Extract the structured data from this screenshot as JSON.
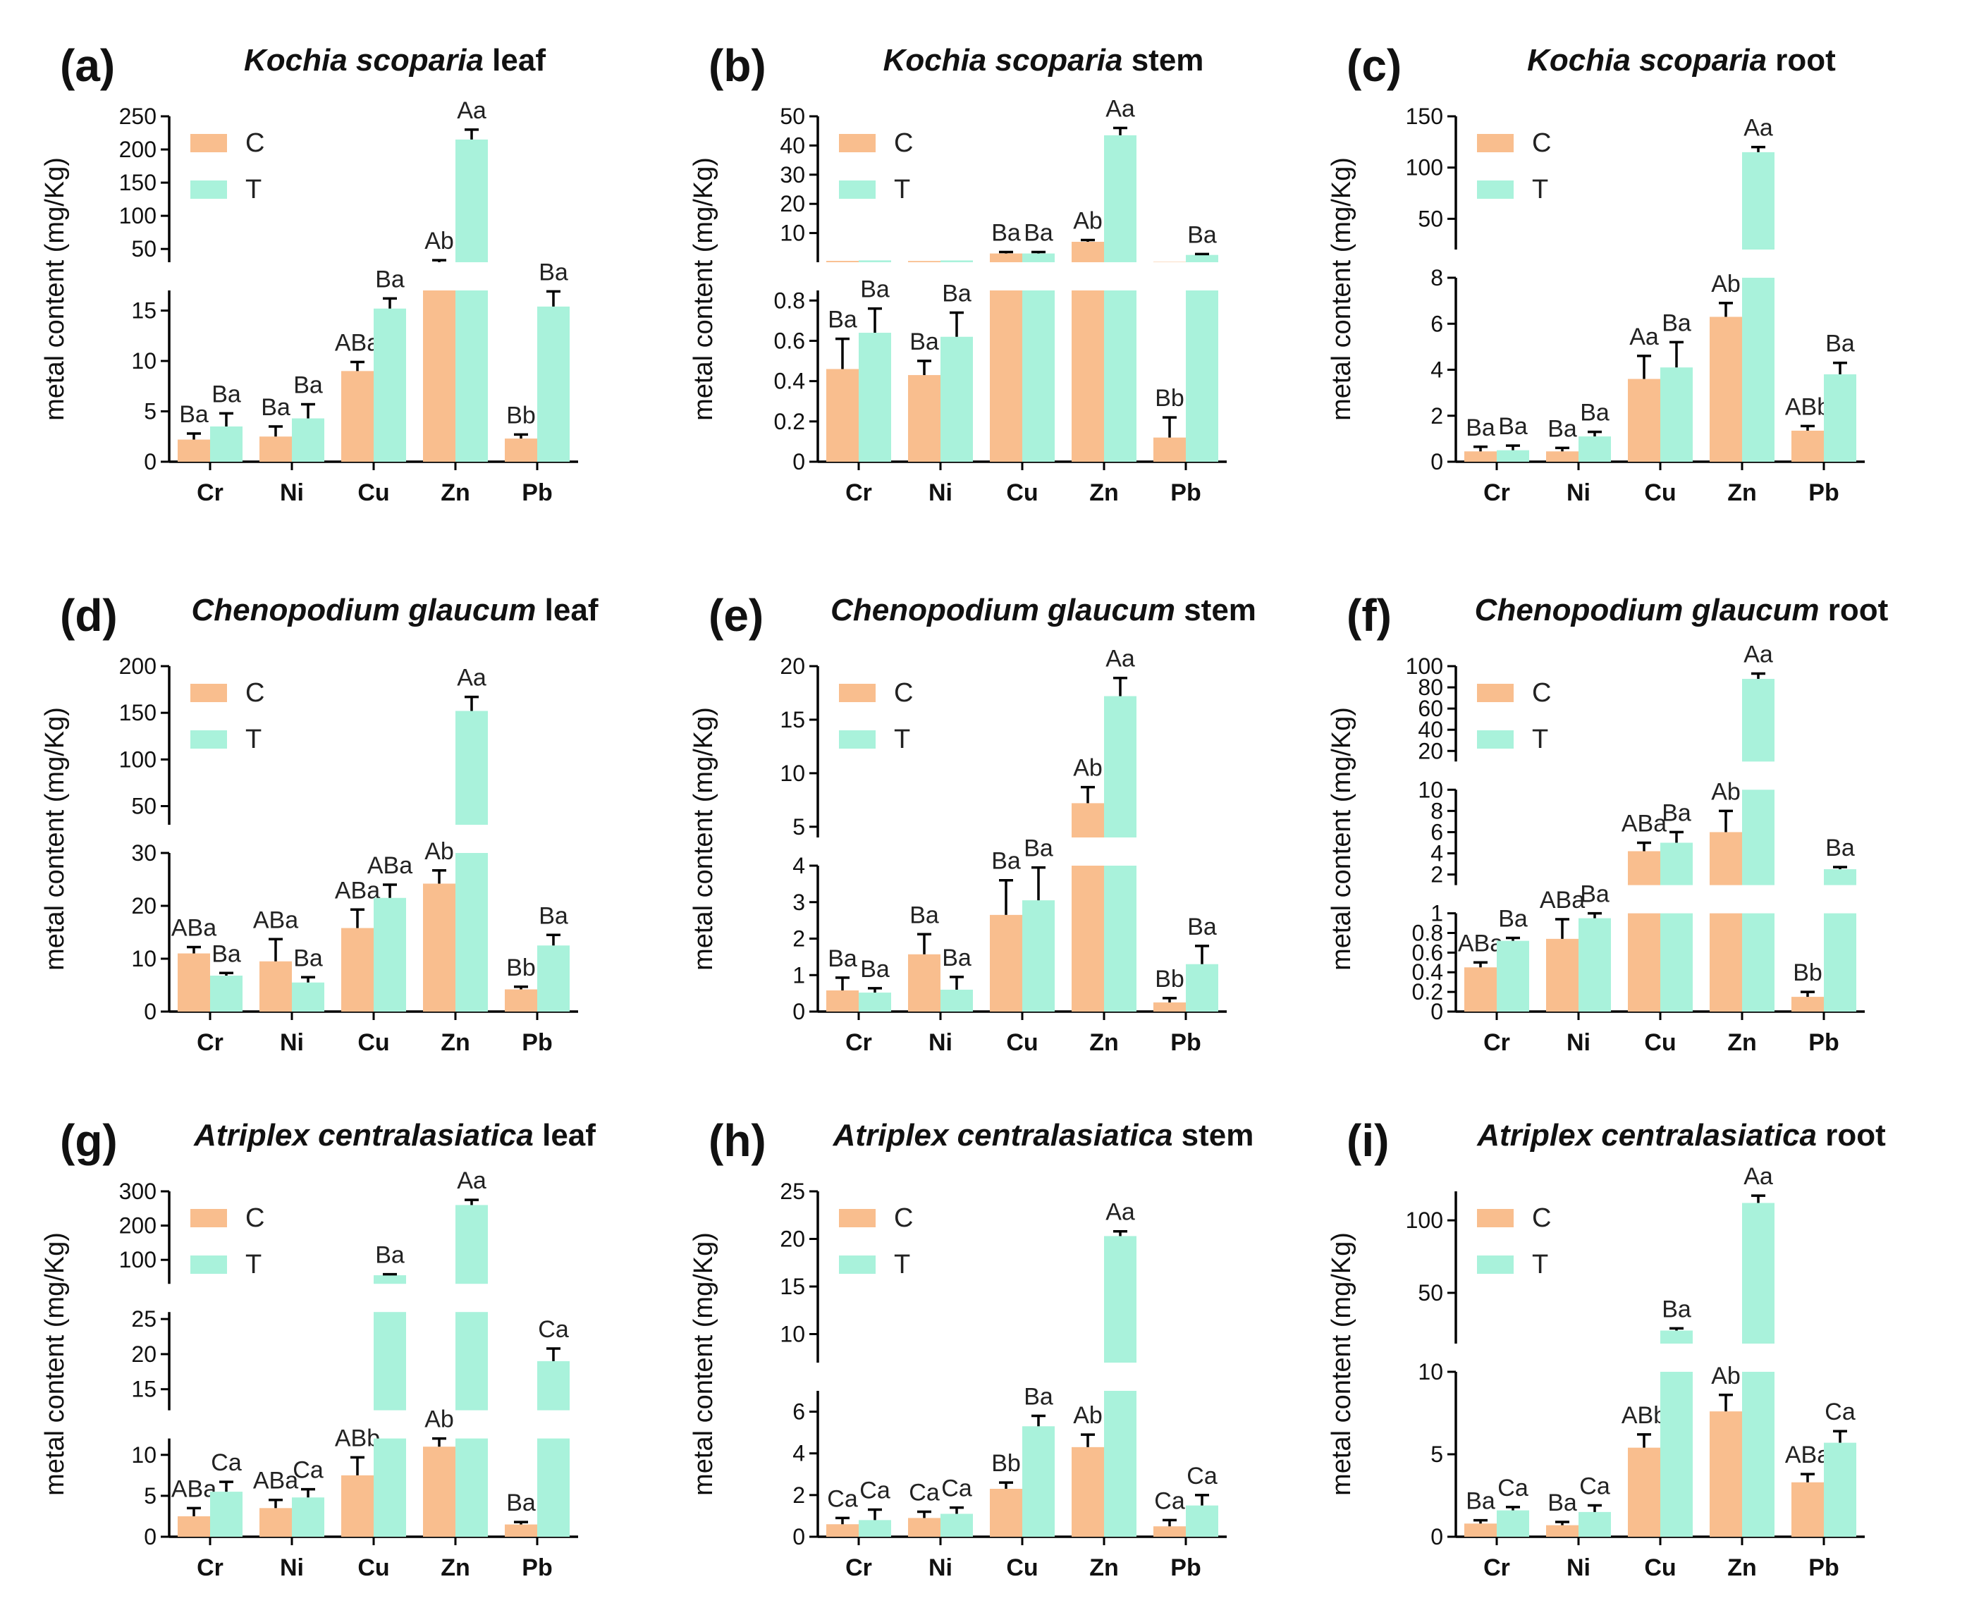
{
  "colors": {
    "C": "#F9BE8E",
    "T": "#A9F2DB"
  },
  "chart_data": [
    {
      "panel": "(a)",
      "type": "bar",
      "title_italic": "Kochia scoparia",
      "title_rest": " leaf",
      "ylabel": "metal content (mg/Kg)",
      "categories": [
        "Cr",
        "Ni",
        "Cu",
        "Zn",
        "Pb"
      ],
      "series": [
        {
          "name": "C",
          "values": [
            2.2,
            2.5,
            9.0,
            25,
            2.3
          ],
          "errors": [
            0.6,
            1.0,
            0.9,
            8,
            0.4
          ],
          "labels": [
            "Ba",
            "Ba",
            "ABa",
            "Ab",
            "Bb"
          ]
        },
        {
          "name": "T",
          "values": [
            3.5,
            4.3,
            15.2,
            215,
            15.4
          ],
          "errors": [
            1.3,
            1.4,
            1.0,
            15,
            1.5
          ],
          "labels": [
            "Ba",
            "Ba",
            "Ba",
            "Aa",
            "Ba"
          ]
        }
      ],
      "segments": [
        {
          "range": [
            0,
            17
          ],
          "ticks": [
            0,
            5,
            10,
            15
          ],
          "frac": 0.54
        },
        {
          "range": [
            30,
            250
          ],
          "ticks": [
            50,
            100,
            150,
            200,
            250
          ],
          "frac": 0.46
        }
      ],
      "legend": "top-left"
    },
    {
      "panel": "(b)",
      "type": "bar",
      "title_italic": "Kochia scoparia",
      "title_rest": " stem",
      "ylabel": "metal content (mg/Kg)",
      "categories": [
        "Cr",
        "Ni",
        "Cu",
        "Zn",
        "Pb"
      ],
      "series": [
        {
          "name": "C",
          "values": [
            0.46,
            0.43,
            3.0,
            7.0,
            0.12
          ],
          "errors": [
            0.15,
            0.07,
            0.5,
            0.6,
            0.1
          ],
          "labels": [
            "Ba",
            "Ba",
            "Ba",
            "Ab",
            "Bb"
          ]
        },
        {
          "name": "T",
          "values": [
            0.64,
            0.62,
            3.0,
            43.5,
            2.5
          ],
          "errors": [
            0.12,
            0.12,
            0.5,
            2.5,
            0.3
          ],
          "labels": [
            "Ba",
            "Ba",
            "Ba",
            "Aa",
            "Ba"
          ]
        }
      ],
      "segments": [
        {
          "range": [
            0,
            0.85
          ],
          "ticks": [
            0.0,
            0.2,
            0.4,
            0.6,
            0.8
          ],
          "frac": 0.54
        },
        {
          "range": [
            0,
            50
          ],
          "ticks": [
            10,
            20,
            30,
            40,
            50
          ],
          "frac": 0.46
        }
      ],
      "legend": "top-left"
    },
    {
      "panel": "(c)",
      "type": "bar",
      "title_italic": "Kochia scoparia",
      "title_rest": " root",
      "ylabel": "metal content (mg/Kg)",
      "categories": [
        "Cr",
        "Ni",
        "Cu",
        "Zn",
        "Pb"
      ],
      "series": [
        {
          "name": "C",
          "values": [
            0.45,
            0.45,
            3.6,
            6.3,
            1.35
          ],
          "errors": [
            0.2,
            0.15,
            1.0,
            0.6,
            0.2
          ],
          "labels": [
            "Ba",
            "Ba",
            "Aa",
            "Ab",
            "ABb"
          ]
        },
        {
          "name": "T",
          "values": [
            0.5,
            1.1,
            4.1,
            115,
            3.8
          ],
          "errors": [
            0.2,
            0.2,
            1.1,
            5,
            0.5
          ],
          "labels": [
            "Ba",
            "Ba",
            "Ba",
            "Aa",
            "Ba"
          ]
        }
      ],
      "segments": [
        {
          "range": [
            0,
            8
          ],
          "ticks": [
            0,
            2,
            4,
            6,
            8
          ],
          "frac": 0.58
        },
        {
          "range": [
            20,
            150
          ],
          "ticks": [
            50,
            100,
            150
          ],
          "frac": 0.42
        }
      ],
      "legend": "top-left"
    },
    {
      "panel": "(d)",
      "type": "bar",
      "title_italic": "Chenopodium glaucum",
      "title_rest": " leaf",
      "ylabel": "metal content (mg/Kg)",
      "categories": [
        "Cr",
        "Ni",
        "Cu",
        "Zn",
        "Pb"
      ],
      "series": [
        {
          "name": "C",
          "values": [
            11,
            9.5,
            15.8,
            24.2,
            4.2
          ],
          "errors": [
            1.2,
            4.2,
            3.5,
            2.5,
            0.5
          ],
          "labels": [
            "ABa",
            "ABa",
            "ABa",
            "Ab",
            "Bb"
          ]
        },
        {
          "name": "T",
          "values": [
            6.8,
            5.5,
            21.5,
            152,
            12.5
          ],
          "errors": [
            0.5,
            1.0,
            2.5,
            15,
            2.0
          ],
          "labels": [
            "Ba",
            "Ba",
            "ABa",
            "Aa",
            "Ba"
          ]
        }
      ],
      "segments": [
        {
          "range": [
            0,
            30
          ],
          "ticks": [
            0,
            10,
            20,
            30
          ],
          "frac": 0.5
        },
        {
          "range": [
            30,
            200
          ],
          "ticks": [
            50,
            100,
            150,
            200
          ],
          "frac": 0.5
        }
      ],
      "legend": "top-left"
    },
    {
      "panel": "(e)",
      "type": "bar",
      "title_italic": "Chenopodium glaucum",
      "title_rest": " stem",
      "ylabel": "metal content (mg/Kg)",
      "categories": [
        "Cr",
        "Ni",
        "Cu",
        "Zn",
        "Pb"
      ],
      "series": [
        {
          "name": "C",
          "values": [
            0.58,
            1.57,
            2.65,
            7.2,
            0.25
          ],
          "errors": [
            0.35,
            0.55,
            0.95,
            1.5,
            0.12
          ],
          "labels": [
            "Ba",
            "Ba",
            "Ba",
            "Ab",
            "Bb"
          ]
        },
        {
          "name": "T",
          "values": [
            0.52,
            0.6,
            3.05,
            17.2,
            1.3
          ],
          "errors": [
            0.12,
            0.35,
            0.9,
            1.7,
            0.5
          ],
          "labels": [
            "Ba",
            "Ba",
            "Ba",
            "Aa",
            "Ba"
          ]
        }
      ],
      "segments": [
        {
          "range": [
            0,
            4
          ],
          "ticks": [
            0,
            1,
            2,
            3,
            4
          ],
          "frac": 0.46
        },
        {
          "range": [
            4,
            20
          ],
          "ticks": [
            5,
            10,
            15,
            20
          ],
          "frac": 0.54
        }
      ],
      "legend": "top-left"
    },
    {
      "panel": "(f)",
      "type": "bar",
      "title_italic": "Chenopodium glaucum",
      "title_rest": " root",
      "ylabel": "metal content (mg/Kg)",
      "categories": [
        "Cr",
        "Ni",
        "Cu",
        "Zn",
        "Pb"
      ],
      "series": [
        {
          "name": "C",
          "values": [
            0.45,
            0.74,
            4.2,
            6.0,
            0.15
          ],
          "errors": [
            0.05,
            0.2,
            0.8,
            2.0,
            0.05
          ],
          "labels": [
            "ABa",
            "ABa",
            "ABa",
            "Ab",
            "Bb"
          ]
        },
        {
          "name": "T",
          "values": [
            0.72,
            0.95,
            5.0,
            88,
            2.5
          ],
          "errors": [
            0.03,
            0.05,
            1.0,
            5,
            0.2
          ],
          "labels": [
            "Ba",
            "Ba",
            "Ba",
            "Aa",
            "Ba"
          ]
        }
      ],
      "segments": [
        {
          "range": [
            0,
            1.0
          ],
          "ticks": [
            0.0,
            0.2,
            0.4,
            0.6,
            0.8,
            1.0
          ],
          "frac": 0.34
        },
        {
          "range": [
            1,
            10
          ],
          "ticks": [
            2,
            4,
            6,
            8,
            10
          ],
          "frac": 0.33
        },
        {
          "range": [
            10,
            100
          ],
          "ticks": [
            20,
            40,
            60,
            80,
            100
          ],
          "frac": 0.33
        }
      ],
      "legend": "top-left"
    },
    {
      "panel": "(g)",
      "type": "bar",
      "title_italic": "Atriplex centralasiatica",
      "title_rest": " leaf",
      "ylabel": "metal content (mg/Kg)",
      "categories": [
        "Cr",
        "Ni",
        "Cu",
        "Zn",
        "Pb"
      ],
      "series": [
        {
          "name": "C",
          "values": [
            2.5,
            3.5,
            7.5,
            11,
            1.5
          ],
          "errors": [
            1.0,
            1.0,
            2.2,
            1.0,
            0.3
          ],
          "labels": [
            "ABa",
            "ABa",
            "ABb",
            "Ab",
            "Ba"
          ]
        },
        {
          "name": "T",
          "values": [
            5.5,
            4.8,
            55,
            260,
            19
          ],
          "errors": [
            1.2,
            1.0,
            3,
            15,
            1.8
          ],
          "labels": [
            "Ca",
            "Ca",
            "Ba",
            "Aa",
            "Ca"
          ]
        }
      ],
      "segments": [
        {
          "range": [
            0,
            12
          ],
          "ticks": [
            0,
            5,
            10
          ],
          "frac": 0.34
        },
        {
          "range": [
            12,
            26
          ],
          "ticks": [
            15,
            20,
            25
          ],
          "frac": 0.34
        },
        {
          "range": [
            30,
            300
          ],
          "ticks": [
            100,
            200,
            300
          ],
          "frac": 0.32
        }
      ],
      "legend": "top-left"
    },
    {
      "panel": "(h)",
      "type": "bar",
      "title_italic": "Atriplex centralasiatica",
      "title_rest": " stem",
      "ylabel": "metal content (mg/Kg)",
      "categories": [
        "Cr",
        "Ni",
        "Cu",
        "Zn",
        "Pb"
      ],
      "series": [
        {
          "name": "C",
          "values": [
            0.6,
            0.9,
            2.3,
            4.3,
            0.5
          ],
          "errors": [
            0.3,
            0.3,
            0.3,
            0.6,
            0.3
          ],
          "labels": [
            "Ca",
            "Ca",
            "Bb",
            "Ab",
            "Ca"
          ]
        },
        {
          "name": "T",
          "values": [
            0.8,
            1.1,
            5.3,
            20.3,
            1.5
          ],
          "errors": [
            0.5,
            0.3,
            0.5,
            0.5,
            0.5
          ],
          "labels": [
            "Ca",
            "Ca",
            "Ba",
            "Aa",
            "Ca"
          ]
        }
      ],
      "segments": [
        {
          "range": [
            0,
            7
          ],
          "ticks": [
            0,
            2,
            4,
            6
          ],
          "frac": 0.46
        },
        {
          "range": [
            7,
            25
          ],
          "ticks": [
            10,
            15,
            20,
            25
          ],
          "frac": 0.54
        }
      ],
      "legend": "top-left"
    },
    {
      "panel": "(i)",
      "type": "bar",
      "title_italic": "Atriplex centralasiatica",
      "title_rest": " root",
      "ylabel": "metal content (mg/Kg)",
      "categories": [
        "Cr",
        "Ni",
        "Cu",
        "Zn",
        "Pb"
      ],
      "series": [
        {
          "name": "C",
          "values": [
            0.8,
            0.7,
            5.4,
            7.6,
            3.3
          ],
          "errors": [
            0.2,
            0.2,
            0.8,
            1.0,
            0.5
          ],
          "labels": [
            "Ba",
            "Ba",
            "ABb",
            "Ab",
            "ABa"
          ]
        },
        {
          "name": "T",
          "values": [
            1.6,
            1.5,
            24,
            112,
            5.7
          ],
          "errors": [
            0.2,
            0.4,
            1.5,
            5,
            0.7
          ],
          "labels": [
            "Ca",
            "Ca",
            "Ba",
            "Aa",
            "Ca"
          ]
        }
      ],
      "segments": [
        {
          "range": [
            0,
            10
          ],
          "ticks": [
            0,
            5,
            10
          ],
          "frac": 0.52
        },
        {
          "range": [
            15,
            120
          ],
          "ticks": [
            50,
            100
          ],
          "frac": 0.48
        }
      ],
      "legend": "top-left"
    }
  ]
}
